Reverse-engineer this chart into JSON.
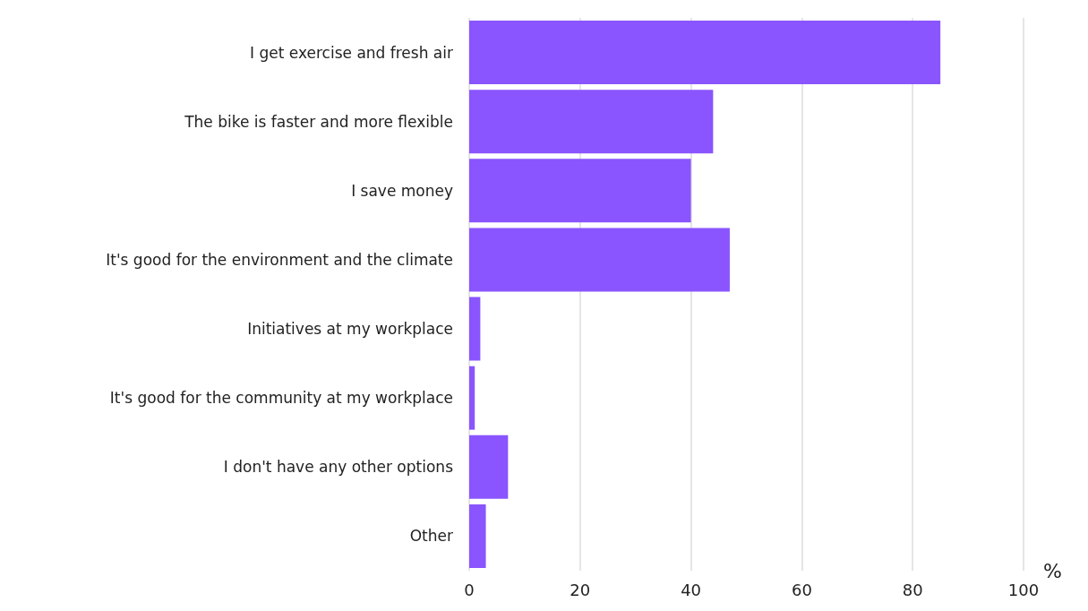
{
  "chart_data": {
    "type": "bar",
    "orientation": "horizontal",
    "categories": [
      "I get exercise and fresh air",
      "The bike is faster and more flexible",
      "I save money",
      "It's good for the environment and the climate",
      "Initiatives at my workplace",
      "It's good for the community at my workplace",
      "I don't have any other options",
      "Other"
    ],
    "values": [
      85,
      44,
      40,
      47,
      2,
      1,
      7,
      3
    ],
    "color": "#8a55ff",
    "xlabel": "%",
    "xlim": [
      0,
      100
    ],
    "xticks": [
      0,
      20,
      40,
      60,
      80,
      100
    ],
    "grid": "x"
  }
}
